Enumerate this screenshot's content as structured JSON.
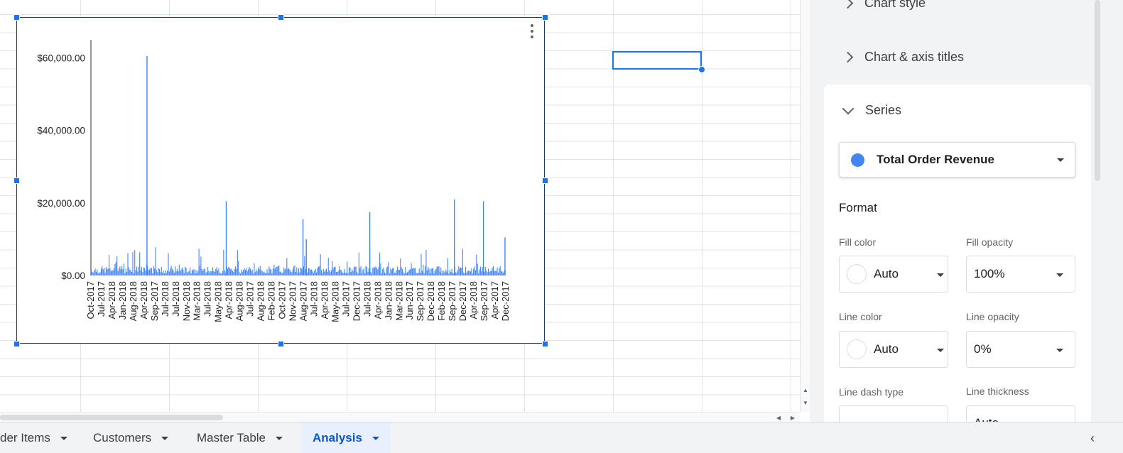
{
  "sheet": {
    "tabs": [
      {
        "label": "der Items",
        "active": false
      },
      {
        "label": "Customers",
        "active": false
      },
      {
        "label": "Master Table",
        "active": false
      },
      {
        "label": "Analysis",
        "active": true
      }
    ],
    "collapse_glyph": "‹"
  },
  "chart_data": {
    "type": "bar",
    "ylim": [
      0,
      65000
    ],
    "y_ticks": [
      "$0.00",
      "$20,000.00",
      "$40,000.00",
      "$60,000.00"
    ],
    "y_tick_values": [
      0,
      20000,
      40000,
      60000
    ],
    "x_tick_labels": [
      "Oct-2017",
      "Jul-2017",
      "Apr-2018",
      "Jan-2018",
      "Aug-2018",
      "Apr-2018",
      "Sep-2017",
      "Jul-2018",
      "Jul-2018",
      "Nov-2018",
      "Mar-2018",
      "Jul-2018",
      "May-2018",
      "Apr-2018",
      "Aug-2018",
      "Jul-2017",
      "Aug-2018",
      "Feb-2018",
      "Oct-2017",
      "Nov-2017",
      "Aug-2017",
      "Jul-2018",
      "Apr-2018",
      "May-2018",
      "Jul-2017",
      "Dec-2017",
      "Jul-2018",
      "Apr-2018",
      "Jan-2018",
      "Mar-2018",
      "Jun-2017",
      "Sep-2017",
      "Dec-2018",
      "Feb-2018",
      "Sep-2017",
      "Dec-2017",
      "Apr-2018",
      "Sep-2017",
      "Apr-2017",
      "Dec-2017"
    ],
    "peaks": [
      {
        "position": 0.134,
        "value": 60500
      },
      {
        "position": 0.325,
        "value": 20500
      },
      {
        "position": 0.51,
        "value": 15500
      },
      {
        "position": 0.518,
        "value": 10000
      },
      {
        "position": 0.671,
        "value": 17500
      },
      {
        "position": 0.875,
        "value": 21000
      },
      {
        "position": 0.945,
        "value": 20500
      },
      {
        "position": 0.997,
        "value": 10500
      }
    ],
    "typical_bar_range": [
      500,
      4000
    ],
    "bar_count": 420,
    "color": "#4285f4"
  },
  "panel": {
    "sections": {
      "chart_style": "Chart style",
      "titles": "Chart & axis titles",
      "series": "Series"
    },
    "series_selected": "Total Order Revenue",
    "series_color": "#4285f4",
    "format_title": "Format",
    "fields": {
      "fill_color_label": "Fill color",
      "fill_color_value": "Auto",
      "fill_opacity_label": "Fill opacity",
      "fill_opacity_value": "100%",
      "line_color_label": "Line color",
      "line_color_value": "Auto",
      "line_opacity_label": "Line opacity",
      "line_opacity_value": "0%",
      "line_dash_label": "Line dash type",
      "line_thickness_label": "Line thickness",
      "line_thickness_value": "Auto"
    }
  }
}
